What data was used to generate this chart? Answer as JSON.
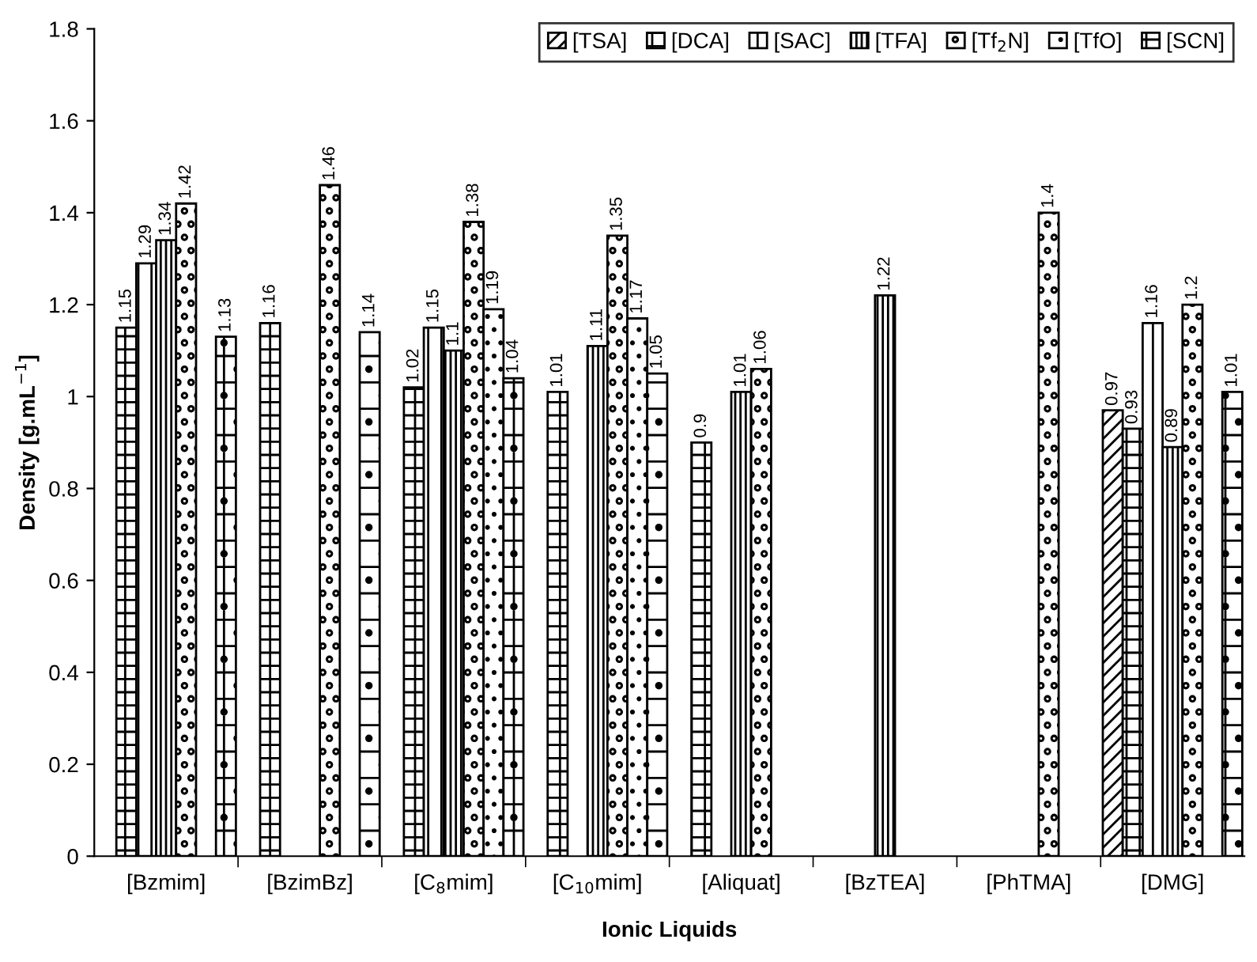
{
  "chart_data": {
    "type": "bar",
    "xlabel": "Ionic Liquids",
    "ylabel": "Density [g.mL$^{−1}$]",
    "categories": [
      "[Bzmim]",
      "[BzimBz]",
      "[C$_{8}$mim]",
      "[C$_{10}$mim]",
      "[Aliquat]",
      "[BzTEA]",
      "[PhTMA]",
      "[DMG]"
    ],
    "series": [
      {
        "name": "[TSA]",
        "color": "#000000",
        "values": [
          null,
          null,
          null,
          null,
          null,
          null,
          null,
          0.97
        ]
      },
      {
        "name": "[DCA]",
        "color": "#000000",
        "values": [
          1.15,
          1.16,
          1.02,
          1.01,
          0.9,
          null,
          null,
          0.93
        ]
      },
      {
        "name": "[SAC]",
        "color": "#000000",
        "values": [
          1.29,
          null,
          1.15,
          null,
          null,
          null,
          null,
          1.16
        ]
      },
      {
        "name": "[TFA]",
        "color": "#000000",
        "values": [
          1.34,
          null,
          1.1,
          1.11,
          1.01,
          1.22,
          null,
          0.89
        ]
      },
      {
        "name": "[Tf$_{2}$N]",
        "color": "#000000",
        "values": [
          1.42,
          1.46,
          1.38,
          1.35,
          1.06,
          null,
          1.4,
          1.2
        ]
      },
      {
        "name": "[TfO]",
        "color": "#000000",
        "values": [
          null,
          null,
          1.19,
          1.17,
          null,
          null,
          null,
          null
        ]
      },
      {
        "name": "[SCN]",
        "color": "#000000",
        "values": [
          1.13,
          1.14,
          1.04,
          1.05,
          null,
          null,
          null,
          1.01
        ]
      }
    ],
    "ylim": [
      0,
      1.8
    ],
    "yticks": [
      0,
      0.2,
      0.4,
      0.6,
      0.8,
      1,
      1.2,
      1.4,
      1.6,
      1.8
    ],
    "data_labels": true,
    "legend": "top right",
    "grid": false
  }
}
